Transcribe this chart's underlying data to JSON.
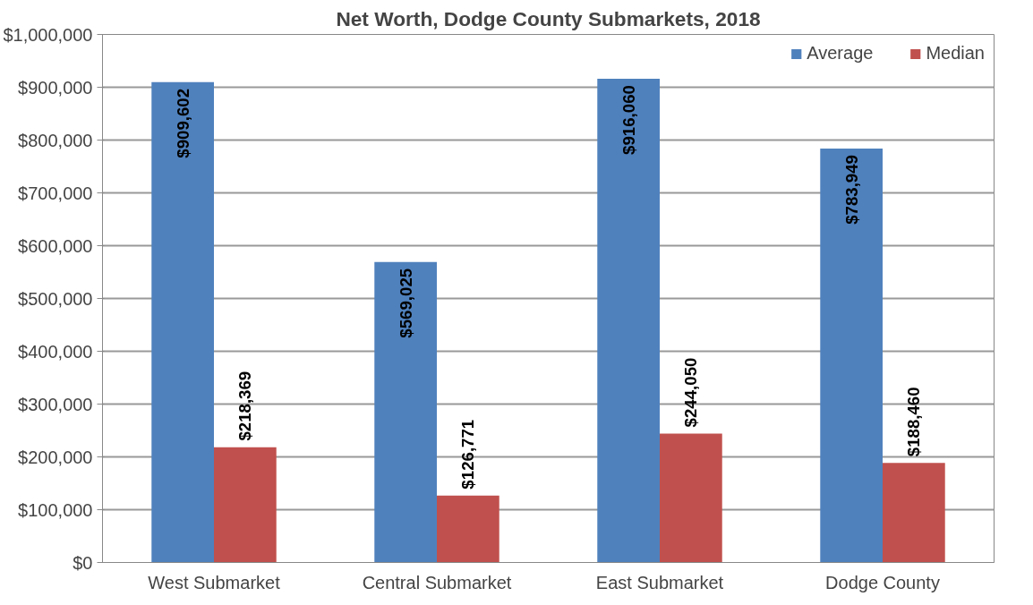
{
  "chart_data": {
    "type": "bar",
    "title": "Net Worth, Dodge County Submarkets, 2018",
    "categories": [
      "West Submarket",
      "Central Submarket",
      "East Submarket",
      "Dodge County"
    ],
    "series": [
      {
        "name": "Average",
        "color": "#4f81bd",
        "values": [
          909602,
          569025,
          916060,
          783949
        ],
        "value_labels": [
          "$909,602",
          "$569,025",
          "$916,060",
          "$783,949"
        ]
      },
      {
        "name": "Median",
        "color": "#c0504d",
        "values": [
          218369,
          126771,
          244050,
          188460
        ],
        "value_labels": [
          "$218,369",
          "$126,771",
          "$244,050",
          "$188,460"
        ]
      }
    ],
    "ylim": [
      0,
      1000000
    ],
    "yticks": [
      {
        "value": 0,
        "label": "$0"
      },
      {
        "value": 100000,
        "label": "$100,000"
      },
      {
        "value": 200000,
        "label": "$200,000"
      },
      {
        "value": 300000,
        "label": "$300,000"
      },
      {
        "value": 400000,
        "label": "$400,000"
      },
      {
        "value": 500000,
        "label": "$500,000"
      },
      {
        "value": 600000,
        "label": "$600,000"
      },
      {
        "value": 700000,
        "label": "$700,000"
      },
      {
        "value": 800000,
        "label": "$800,000"
      },
      {
        "value": 900000,
        "label": "$900,000"
      },
      {
        "value": 1000000,
        "label": "$1,000,000"
      }
    ],
    "grid": "y",
    "legend": "top right"
  }
}
